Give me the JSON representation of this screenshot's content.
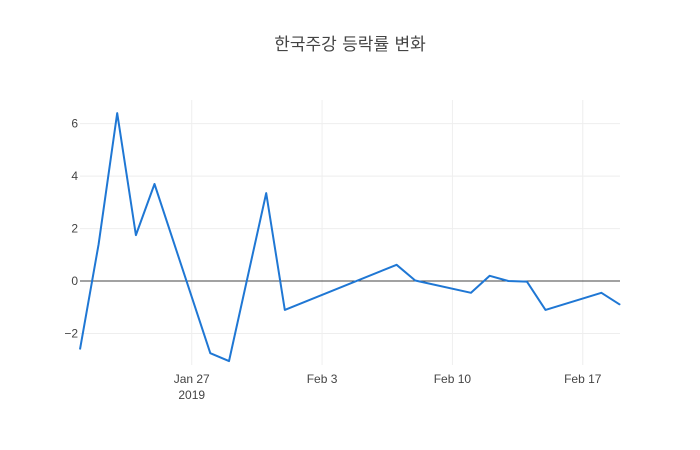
{
  "chart_data": {
    "type": "line",
    "title": "한국주강 등락률 변화",
    "xlabel": "",
    "ylabel": "",
    "x_ticks": [
      {
        "date": "2019-01-27",
        "label": "Jan 27",
        "sublabel": "2019"
      },
      {
        "date": "2019-02-03",
        "label": "Feb 3",
        "sublabel": ""
      },
      {
        "date": "2019-02-10",
        "label": "Feb 10",
        "sublabel": ""
      },
      {
        "date": "2019-02-17",
        "label": "Feb 17",
        "sublabel": ""
      }
    ],
    "y_ticks": [
      {
        "value": -2,
        "label": "−2"
      },
      {
        "value": 0,
        "label": "0"
      },
      {
        "value": 2,
        "label": "2"
      },
      {
        "value": 4,
        "label": "4"
      },
      {
        "value": 6,
        "label": "6"
      }
    ],
    "xlim": [
      "2019-01-21",
      "2019-02-19"
    ],
    "ylim": [
      -3.2,
      6.9
    ],
    "grid": true,
    "color": "#1f77d4",
    "zeroline_color": "#444444",
    "series": [
      {
        "x": [
          "2019-01-21",
          "2019-01-22",
          "2019-01-23",
          "2019-01-24",
          "2019-01-25",
          "2019-01-28",
          "2019-01-29",
          "2019-01-31",
          "2019-02-01",
          "2019-02-07",
          "2019-02-08",
          "2019-02-11",
          "2019-02-12",
          "2019-02-13",
          "2019-02-14",
          "2019-02-15",
          "2019-02-18",
          "2019-02-19"
        ],
        "y": [
          -2.6,
          1.4,
          6.4,
          1.75,
          3.7,
          -2.75,
          -3.05,
          3.35,
          -1.1,
          0.62,
          0.02,
          -0.45,
          0.2,
          0.0,
          -0.02,
          -1.1,
          -0.45,
          -0.9
        ]
      }
    ]
  }
}
